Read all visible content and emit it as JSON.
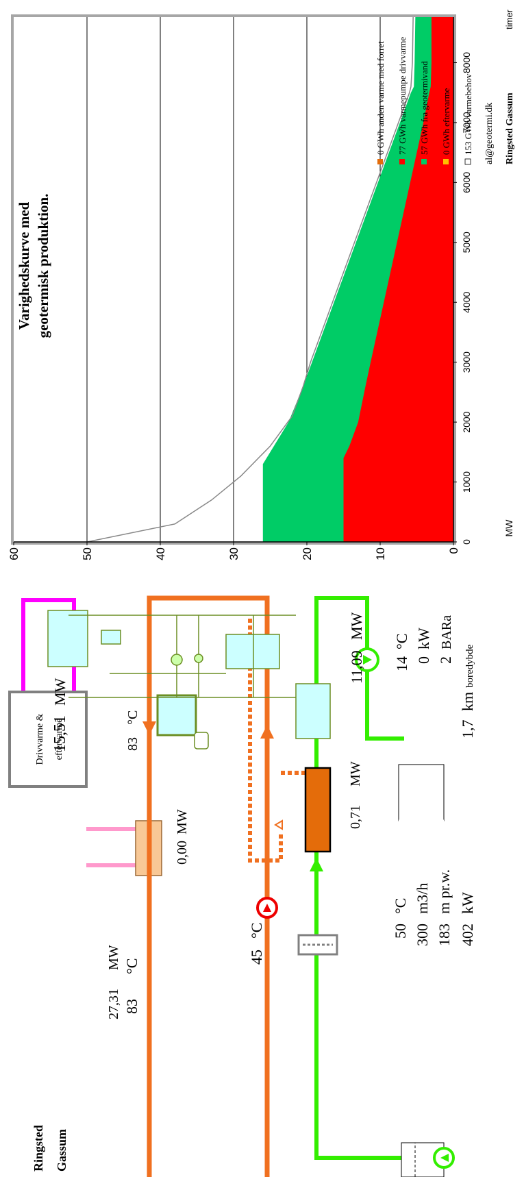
{
  "schematic": {
    "plant_name_line1": "Ringsted",
    "plant_name_line2": "Gassum",
    "total_power_value": "27,31",
    "total_power_unit": "MW",
    "forward_temp_value": "83",
    "forward_temp_unit": "°C",
    "return_temp_value": "45",
    "return_temp_unit": "°C",
    "drive_box_line1": "Drivvarme &",
    "drive_box_line2": "eftervarme",
    "aftervarme_power_value": "0,00",
    "aftervarme_power_unit": "MW",
    "drive_power_value": "15,51",
    "drive_power_unit": "MW",
    "hp_outlet_temp_value": "83",
    "hp_outlet_temp_unit": "°C",
    "hx_power_value": "0,71",
    "hx_power_unit": "MW",
    "hp_power_value": "11,09",
    "hp_power_unit": "MW",
    "well_params": [
      {
        "value": "50",
        "unit": "°C"
      },
      {
        "value": "300",
        "unit": "m3/h"
      },
      {
        "value": "183",
        "unit": "m pr.w."
      },
      {
        "value": "402",
        "unit": "kW"
      }
    ],
    "reinjection_params": [
      {
        "value": "14",
        "unit": "°C"
      },
      {
        "value": "0",
        "unit": "kW"
      },
      {
        "value": "2",
        "unit": "BARa"
      }
    ],
    "depth_value": "1,7",
    "depth_unit": "km",
    "depth_suffix": "boredybde"
  },
  "chart_data": {
    "type": "area",
    "title_line1": "Varighedskurve med",
    "title_line2": "geotermisk produktion.",
    "xlabel": "timer",
    "ylabel": "MW",
    "xlim": [
      0,
      8760
    ],
    "ylim": [
      0,
      60
    ],
    "x_ticks": [
      "0",
      "1000",
      "2000",
      "3000",
      "4000",
      "5000",
      "6000",
      "7000",
      "8000"
    ],
    "y_ticks": [
      "0",
      "10",
      "20",
      "30",
      "40",
      "50",
      "60"
    ],
    "grid": "horizontal",
    "legend": {
      "title": "Ringsted Gassum",
      "email": "al@geotermi.dk",
      "items": [
        {
          "label": "153 GWh varmebehov",
          "color": "#ffffff"
        },
        {
          "label": "0 GWh eftervarme",
          "color": "#ffc000"
        },
        {
          "label": "57 GWh fra geotermivand",
          "color": "#00cc66"
        },
        {
          "label": "77 GWh varmepumpe drivvarme",
          "color": "#ff0000"
        },
        {
          "label": "0 GWh anden varme med forret",
          "color": "#e46c0a"
        }
      ]
    },
    "series": [
      {
        "name": "varmebehov",
        "color": "#888888",
        "x": [
          0,
          300,
          700,
          1100,
          1600,
          2100,
          2600,
          3000,
          3500,
          4000,
          4500,
          5000,
          5500,
          6000,
          6500,
          7000,
          7500,
          7600,
          8000,
          8760
        ],
        "y": [
          50,
          38,
          33,
          29,
          25,
          22,
          20.5,
          19.5,
          18,
          16.5,
          15,
          13.5,
          12,
          10.5,
          9,
          7.5,
          6,
          5.8,
          5.6,
          5.5
        ]
      },
      {
        "name": "geotermivand",
        "color": "#00cc66",
        "x": [
          0,
          1300,
          1400,
          1600,
          2000,
          2600,
          3000,
          3500,
          4000,
          4500,
          5000,
          5500,
          6000,
          6500,
          7000,
          7500,
          7600,
          8000,
          8760
        ],
        "y": [
          26,
          26,
          25.5,
          24.5,
          22.5,
          20.5,
          19.3,
          17.8,
          16.3,
          14.8,
          13.3,
          11.8,
          10.3,
          8.8,
          7.3,
          5.8,
          5.4,
          5.3,
          5.2
        ]
      },
      {
        "name": "varmepumpe drivvarme",
        "color": "#ff0000",
        "x": [
          0,
          1400,
          1600,
          2000,
          2600,
          3000,
          3500,
          4000,
          4500,
          5000,
          5500,
          6000,
          6500,
          7000,
          7500,
          7600,
          8000,
          8760
        ],
        "y": [
          15,
          15,
          14.2,
          13,
          12,
          11.3,
          10.4,
          9.5,
          8.6,
          7.7,
          6.8,
          5.9,
          5,
          4.1,
          3.3,
          3.1,
          3.0,
          3.0
        ]
      }
    ]
  }
}
